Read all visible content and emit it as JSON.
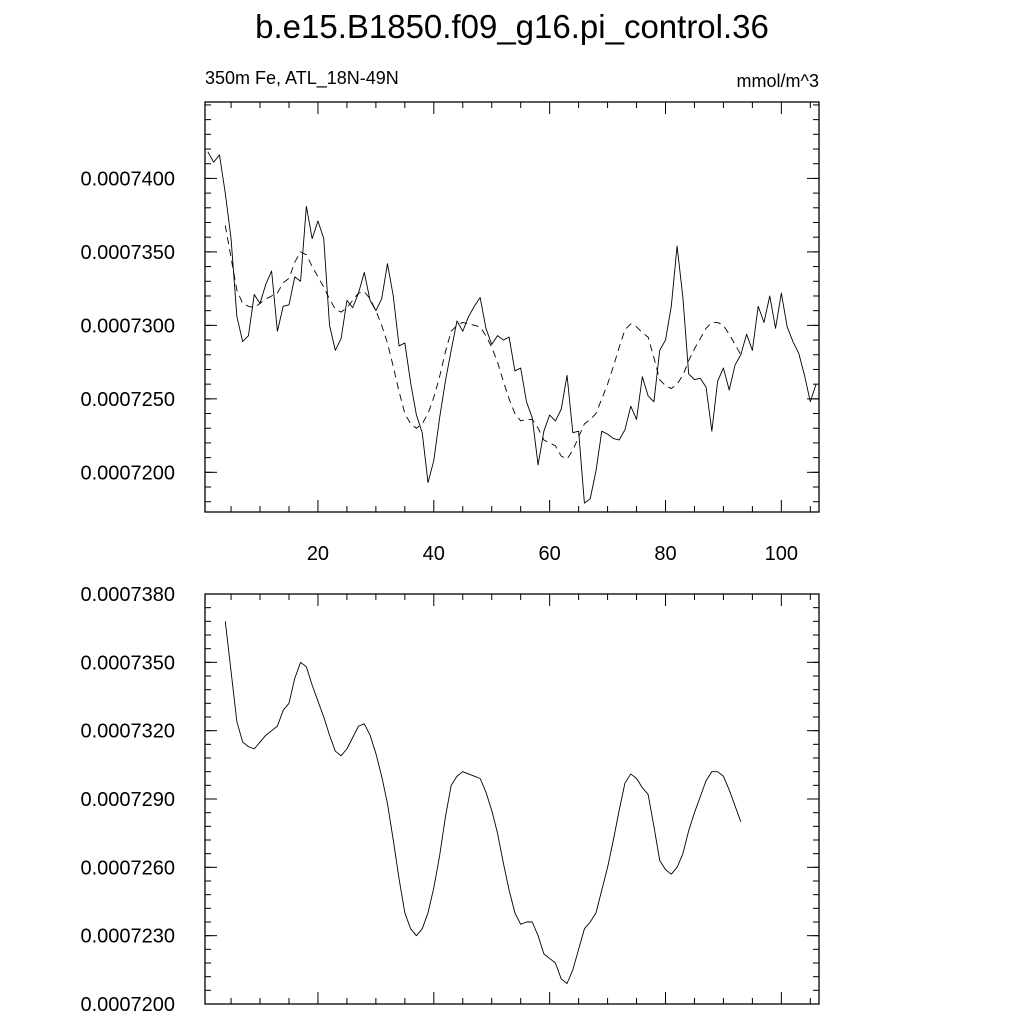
{
  "figure": {
    "title": "b.e15.B1850.f09_g16.pi_control.36"
  },
  "chart_data": [
    {
      "type": "line",
      "left_label": "350m Fe, ATL_18N-49N",
      "right_label": "mmol/m^3",
      "xlim": [
        0.5,
        106.5
      ],
      "ylim": [
        0.0007173,
        0.0007452
      ],
      "ytick_values": [
        0.00072,
        0.000725,
        0.00073,
        0.000735,
        0.00074
      ],
      "ytick_labels": [
        "0.0007200",
        "0.0007250",
        "0.0007300",
        "0.0007350",
        "0.0007400"
      ],
      "xtick_values": [
        20,
        40,
        60,
        80,
        100
      ],
      "xtick_labels": [
        "20",
        "40",
        "60",
        "80",
        "100"
      ],
      "grid": false,
      "series": [
        {
          "style": "solid",
          "x_start": 1,
          "values": [
            0.0007418,
            0.0007411,
            0.0007416,
            0.000739,
            0.0007359,
            0.0007306,
            0.0007289,
            0.0007293,
            0.0007321,
            0.0007315,
            0.0007328,
            0.0007337,
            0.0007296,
            0.0007313,
            0.0007314,
            0.0007333,
            0.000733,
            0.0007381,
            0.0007359,
            0.0007371,
            0.0007359,
            0.00073,
            0.0007283,
            0.0007291,
            0.0007317,
            0.0007312,
            0.0007322,
            0.0007336,
            0.0007317,
            0.000731,
            0.0007318,
            0.0007342,
            0.000732,
            0.0007286,
            0.0007288,
            0.0007261,
            0.0007239,
            0.0007227,
            0.0007193,
            0.0007208,
            0.0007237,
            0.0007262,
            0.0007283,
            0.0007303,
            0.0007296,
            0.0007306,
            0.0007313,
            0.0007319,
            0.0007298,
            0.0007287,
            0.0007293,
            0.000729,
            0.0007292,
            0.0007269,
            0.0007271,
            0.0007248,
            0.0007237,
            0.0007205,
            0.0007228,
            0.0007239,
            0.0007235,
            0.0007243,
            0.0007266,
            0.0007227,
            0.0007228,
            0.0007179,
            0.0007182,
            0.0007201,
            0.0007228,
            0.0007226,
            0.0007223,
            0.0007222,
            0.0007229,
            0.0007245,
            0.0007236,
            0.0007265,
            0.0007252,
            0.0007248,
            0.0007283,
            0.000729,
            0.0007313,
            0.0007354,
            0.0007319,
            0.0007267,
            0.0007263,
            0.0007264,
            0.0007258,
            0.0007228,
            0.0007262,
            0.0007271,
            0.0007256,
            0.0007273,
            0.000728,
            0.0007294,
            0.0007283,
            0.0007313,
            0.0007302,
            0.000732,
            0.0007298,
            0.0007322,
            0.0007299,
            0.0007289,
            0.0007281,
            0.0007266,
            0.0007248,
            0.000726
          ]
        },
        {
          "style": "dashed",
          "x_start": 4,
          "values": [
            0.0007368,
            0.0007346,
            0.0007324,
            0.0007315,
            0.0007313,
            0.0007312,
            0.0007315,
            0.0007318,
            0.000732,
            0.0007322,
            0.0007329,
            0.0007332,
            0.0007343,
            0.000735,
            0.0007348,
            0.000734,
            0.0007333,
            0.0007326,
            0.0007318,
            0.0007311,
            0.0007309,
            0.0007312,
            0.0007317,
            0.0007322,
            0.0007323,
            0.0007318,
            0.000731,
            0.00073,
            0.0007288,
            0.0007272,
            0.0007255,
            0.000724,
            0.0007233,
            0.000723,
            0.0007233,
            0.000724,
            0.0007251,
            0.0007265,
            0.0007282,
            0.0007296,
            0.00073,
            0.0007302,
            0.0007301,
            0.00073,
            0.0007299,
            0.0007293,
            0.0007285,
            0.0007275,
            0.0007262,
            0.000725,
            0.000724,
            0.0007235,
            0.0007236,
            0.0007236,
            0.000723,
            0.0007222,
            0.000722,
            0.0007218,
            0.0007211,
            0.0007209,
            0.0007215,
            0.0007224,
            0.0007233,
            0.0007236,
            0.000724,
            0.000725,
            0.000726,
            0.0007272,
            0.0007285,
            0.0007297,
            0.0007301,
            0.0007299,
            0.0007295,
            0.0007292,
            0.0007278,
            0.0007263,
            0.0007259,
            0.0007257,
            0.000726,
            0.0007266,
            0.0007276,
            0.0007284,
            0.0007291,
            0.0007298,
            0.0007302,
            0.0007302,
            0.00073,
            0.0007294,
            0.0007287,
            0.000728
          ]
        }
      ]
    },
    {
      "type": "line",
      "xlim": [
        0.5,
        106.5
      ],
      "ylim": [
        0.00072,
        0.000738
      ],
      "ytick_values": [
        0.00072,
        0.000723,
        0.000726,
        0.000729,
        0.000732,
        0.000735,
        0.000738
      ],
      "ytick_labels": [
        "0.0007200",
        "0.0007230",
        "0.0007260",
        "0.0007290",
        "0.0007320",
        "0.0007350",
        "0.0007380"
      ],
      "xtick_values": [
        20,
        40,
        60,
        80,
        100
      ],
      "grid": false,
      "series": [
        {
          "style": "solid",
          "x_start": 4,
          "values": [
            0.0007368,
            0.0007346,
            0.0007324,
            0.0007315,
            0.0007313,
            0.0007312,
            0.0007315,
            0.0007318,
            0.000732,
            0.0007322,
            0.0007329,
            0.0007332,
            0.0007343,
            0.000735,
            0.0007348,
            0.000734,
            0.0007333,
            0.0007326,
            0.0007318,
            0.0007311,
            0.0007309,
            0.0007312,
            0.0007317,
            0.0007322,
            0.0007323,
            0.0007318,
            0.000731,
            0.00073,
            0.0007288,
            0.0007272,
            0.0007255,
            0.000724,
            0.0007233,
            0.000723,
            0.0007233,
            0.000724,
            0.0007251,
            0.0007265,
            0.0007282,
            0.0007296,
            0.00073,
            0.0007302,
            0.0007301,
            0.00073,
            0.0007299,
            0.0007293,
            0.0007285,
            0.0007275,
            0.0007262,
            0.000725,
            0.000724,
            0.0007235,
            0.0007236,
            0.0007236,
            0.000723,
            0.0007222,
            0.000722,
            0.0007218,
            0.0007211,
            0.0007209,
            0.0007215,
            0.0007224,
            0.0007233,
            0.0007236,
            0.000724,
            0.000725,
            0.000726,
            0.0007272,
            0.0007285,
            0.0007297,
            0.0007301,
            0.0007299,
            0.0007295,
            0.0007292,
            0.0007278,
            0.0007263,
            0.0007259,
            0.0007257,
            0.000726,
            0.0007266,
            0.0007276,
            0.0007284,
            0.0007291,
            0.0007298,
            0.0007302,
            0.0007302,
            0.00073,
            0.0007294,
            0.0007287,
            0.000728
          ]
        }
      ]
    }
  ]
}
